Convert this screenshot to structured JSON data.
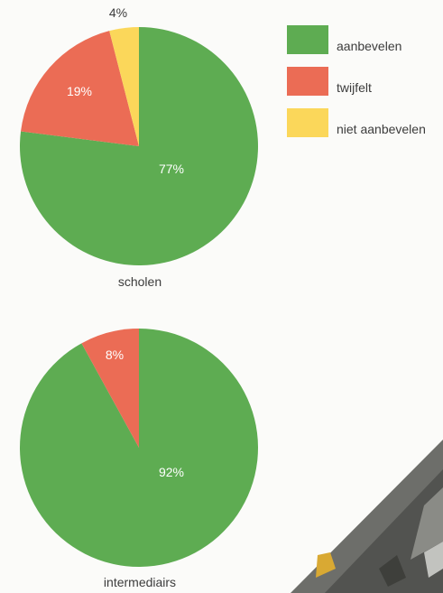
{
  "legend": {
    "items": [
      {
        "label": "aanbevelen",
        "color": "#5eac52"
      },
      {
        "label": "twijfelt",
        "color": "#eb6c55"
      },
      {
        "label": "niet aanbevelen",
        "color": "#fbd75a"
      }
    ]
  },
  "chart_data": [
    {
      "type": "pie",
      "title": "scholen",
      "categories": [
        "aanbevelen",
        "twijfelt",
        "niet aanbevelen"
      ],
      "values": [
        77,
        19,
        4
      ],
      "labels": [
        "77%",
        "19%",
        "4%"
      ],
      "colors": [
        "#5eac52",
        "#eb6c55",
        "#fbd75a"
      ]
    },
    {
      "type": "pie",
      "title": "intermediairs",
      "categories": [
        "aanbevelen",
        "twijfelt"
      ],
      "values": [
        92,
        8
      ],
      "labels": [
        "92%",
        "8%"
      ],
      "colors": [
        "#5eac52",
        "#eb6c55"
      ]
    }
  ]
}
